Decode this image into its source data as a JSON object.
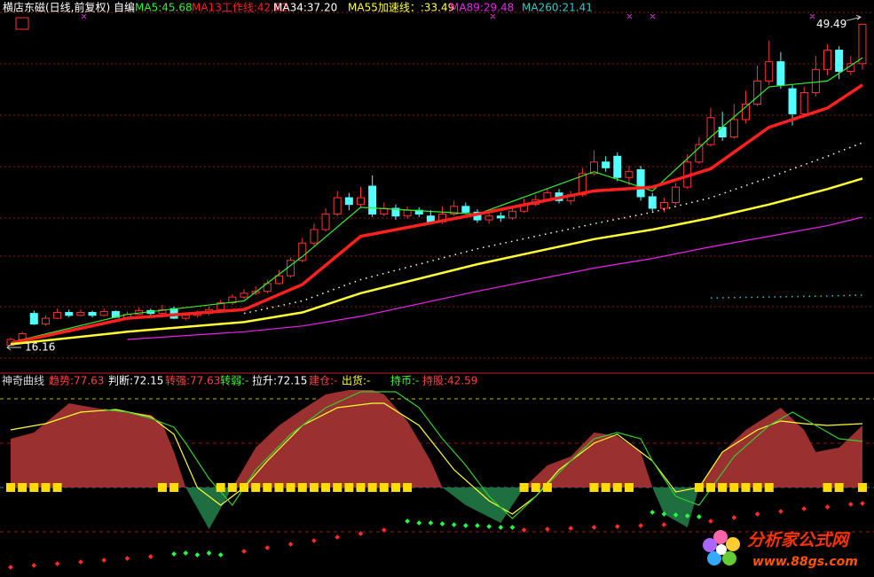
{
  "chart_data": [
    {
      "type": "candlestick",
      "title": "横店东磁(日线,前复权) 自编",
      "title_color": "#ffffff",
      "ylim": [
        13.4,
        52.0
      ],
      "up_color": "#ff3232",
      "down_color": "#54ffff",
      "open": [
        16.2,
        16.8,
        19.5,
        18.4,
        19.0,
        19.6,
        19.3,
        19.6,
        19.3,
        19.7,
        19.1,
        19.4,
        19.8,
        19.5,
        20.0,
        19.0,
        19.3,
        19.5,
        19.9,
        20.6,
        21.2,
        21.6,
        21.8,
        22.6,
        23.4,
        25.0,
        26.8,
        28.2,
        29.8,
        31.5,
        30.8,
        32.7,
        29.8,
        30.4,
        29.6,
        30.2,
        29.6,
        29.0,
        29.8,
        30.6,
        30.0,
        29.2,
        29.6,
        29.4,
        30.1,
        30.8,
        31.3,
        32.0,
        31.2,
        31.8,
        34.0,
        35.2,
        35.8,
        33.6,
        34.4,
        31.6,
        30.4,
        31.0,
        32.6,
        35.2,
        37.0,
        38.8,
        37.8,
        39.6,
        41.2,
        43.6,
        45.6,
        42.8,
        40.2,
        42.4,
        44.8,
        46.8,
        44.6,
        45.4
      ],
      "close": [
        16.8,
        17.4,
        18.4,
        19.0,
        19.6,
        19.3,
        19.6,
        19.3,
        19.7,
        19.1,
        19.4,
        19.8,
        19.5,
        19.9,
        19.0,
        19.3,
        19.5,
        19.9,
        20.6,
        21.2,
        21.6,
        21.8,
        22.6,
        23.4,
        25.0,
        26.8,
        28.2,
        29.8,
        31.5,
        30.8,
        31.5,
        29.8,
        30.4,
        29.6,
        30.2,
        29.8,
        29.0,
        29.8,
        30.6,
        30.0,
        29.2,
        29.6,
        29.4,
        30.1,
        30.8,
        31.3,
        32.0,
        31.2,
        31.8,
        34.0,
        35.2,
        34.6,
        33.6,
        34.2,
        31.6,
        30.4,
        31.0,
        32.6,
        35.2,
        37.0,
        39.8,
        37.8,
        39.6,
        41.2,
        43.6,
        45.6,
        43.2,
        40.2,
        42.4,
        44.8,
        46.8,
        44.6,
        45.4,
        49.49
      ],
      "high": [
        17.0,
        17.6,
        19.8,
        19.3,
        20.0,
        19.9,
        19.9,
        19.8,
        20.0,
        19.8,
        19.7,
        20.1,
        20.0,
        20.4,
        20.2,
        19.6,
        19.8,
        20.2,
        20.9,
        21.5,
        22.0,
        22.3,
        23.0,
        24.0,
        25.3,
        27.3,
        28.8,
        30.4,
        32.2,
        32.0,
        32.6,
        33.8,
        31.0,
        30.8,
        30.6,
        30.5,
        30.2,
        30.6,
        31.2,
        31.0,
        30.3,
        30.0,
        30.0,
        30.4,
        31.4,
        31.8,
        32.5,
        32.4,
        32.2,
        34.6,
        36.4,
        35.8,
        36.2,
        34.8,
        34.8,
        32.0,
        31.5,
        33.0,
        36.0,
        37.8,
        40.8,
        40.4,
        41.2,
        42.6,
        45.2,
        47.8,
        46.6,
        43.2,
        43.0,
        46.2,
        47.4,
        47.2,
        46.2,
        49.49
      ],
      "low": [
        16.16,
        16.7,
        18.3,
        18.2,
        18.9,
        19.1,
        19.2,
        19.1,
        19.2,
        19.0,
        19.0,
        19.3,
        19.3,
        19.4,
        18.9,
        18.8,
        19.1,
        19.3,
        19.8,
        20.4,
        21.0,
        21.4,
        21.6,
        22.5,
        23.2,
        24.8,
        26.5,
        28.0,
        29.6,
        30.2,
        30.5,
        29.5,
        29.6,
        29.2,
        29.3,
        29.5,
        28.7,
        28.8,
        29.6,
        29.8,
        28.9,
        28.8,
        29.0,
        29.2,
        29.9,
        30.6,
        31.1,
        30.9,
        30.8,
        31.6,
        33.8,
        34.2,
        33.2,
        32.8,
        31.2,
        30.1,
        30.0,
        30.8,
        32.4,
        35.0,
        36.8,
        37.4,
        37.6,
        39.2,
        41.0,
        43.2,
        42.8,
        39.0,
        39.8,
        42.0,
        44.2,
        43.8,
        44.2,
        44.8
      ],
      "series": [
        {
          "name": "MA5:45.68",
          "color": "#33ee33",
          "x": [
            0,
            10,
            20,
            25,
            30,
            40,
            50,
            55,
            60,
            65,
            70,
            73
          ],
          "values": [
            16.5,
            19.4,
            20.8,
            25.4,
            30.5,
            29.8,
            34.2,
            32.2,
            37.8,
            43.0,
            43.6,
            46.0
          ]
        },
        {
          "name": "MA13工作线:42.62",
          "color": "#ff2020",
          "width": 3.5,
          "x": [
            0,
            10,
            20,
            25,
            30,
            40,
            50,
            55,
            60,
            65,
            70,
            73
          ],
          "values": [
            16.4,
            19.0,
            19.9,
            22.5,
            27.5,
            29.8,
            32.2,
            32.6,
            34.5,
            38.8,
            40.8,
            43.2
          ]
        },
        {
          "name": "MA34:37.20",
          "color": "#ffffff",
          "style": "dotted",
          "x": [
            0,
            10,
            20,
            25,
            30,
            40,
            50,
            55,
            60,
            65,
            70,
            73
          ],
          "values": [
            null,
            null,
            19.5,
            20.8,
            23.0,
            26.2,
            28.8,
            30.0,
            31.5,
            33.6,
            35.8,
            37.2
          ]
        },
        {
          "name": "MA55加速线：:33.49",
          "color": "#ffff33",
          "width": 2.5,
          "x": [
            0,
            10,
            20,
            25,
            30,
            40,
            50,
            55,
            60,
            65,
            70,
            73
          ],
          "values": [
            16.3,
            17.6,
            18.6,
            19.6,
            21.6,
            24.6,
            27.2,
            28.2,
            29.4,
            30.8,
            32.4,
            33.49
          ]
        },
        {
          "name": "MA89:29.48",
          "color": "#ee22ee",
          "x": [
            0,
            10,
            20,
            25,
            30,
            40,
            50,
            55,
            60,
            65,
            70,
            73
          ],
          "values": [
            null,
            16.8,
            17.6,
            18.2,
            19.2,
            21.8,
            24.2,
            25.2,
            26.4,
            27.5,
            28.6,
            29.48
          ]
        },
        {
          "name": "MA260:21.41",
          "color": "#33c8c8",
          "style": "dotted",
          "x": [
            0,
            10,
            20,
            25,
            30,
            40,
            50,
            55,
            60,
            65,
            70,
            73
          ],
          "values": [
            null,
            null,
            null,
            null,
            null,
            null,
            null,
            null,
            21.1,
            21.2,
            21.3,
            21.41
          ]
        }
      ],
      "annotations": [
        {
          "x": 73,
          "value": 49.49
        },
        {
          "x": 0,
          "value": 16.16
        }
      ]
    },
    {
      "type": "indicator",
      "title": "神奇曲线",
      "title_color": "#dddddd",
      "ylim": [
        -95,
        125
      ],
      "legend": [
        {
          "text": "趋势:77.63",
          "color": "#ff4040"
        },
        {
          "text": "判断:72.15",
          "color": "#ffffff"
        },
        {
          "text": "转强:77.63",
          "color": "#ff4040"
        },
        {
          "text": "转弱:-",
          "color": "#33ff33"
        },
        {
          "text": "拉升:72.15",
          "color": "#ffffff"
        },
        {
          "text": "建仓:-",
          "color": "#ff4040"
        },
        {
          "text": "出货:-",
          "color": "#ffff33"
        },
        {
          "text": "持币:-",
          "color": "#33ff33"
        },
        {
          "text": "持股:42.59",
          "color": "#ff4040"
        }
      ],
      "levels": [
        100,
        50,
        0,
        -50
      ],
      "level_colors": [
        "#c8b400",
        "#8b1a1a",
        "#3a7fa0",
        "#8b1a1a"
      ],
      "area": {
        "up_color": "#9a3030",
        "down_color": "#1f6e40",
        "x": [
          0,
          2,
          5,
          8,
          10,
          12,
          13,
          14,
          15,
          17,
          19,
          21,
          23,
          25,
          27,
          29,
          31,
          32,
          34,
          36,
          37,
          39,
          42,
          44,
          46,
          48,
          50,
          52,
          54,
          55,
          56,
          58,
          59,
          61,
          63,
          66,
          68,
          69,
          71,
          73
        ],
        "values": [
          55,
          62,
          95,
          88,
          85,
          82,
          72,
          40,
          0,
          -47,
          0,
          45,
          70,
          88,
          105,
          110,
          110,
          105,
          75,
          30,
          0,
          -20,
          -40,
          0,
          25,
          35,
          62,
          58,
          40,
          0,
          -30,
          -45,
          0,
          40,
          65,
          90,
          65,
          40,
          45,
          70
        ]
      },
      "series": [
        {
          "color": "#ffff33",
          "x": [
            0,
            3,
            6,
            9,
            12,
            14,
            16,
            18,
            20,
            22,
            25,
            28,
            31,
            32,
            35,
            38,
            41,
            43,
            45,
            47,
            50,
            52,
            55,
            57,
            59,
            61,
            64,
            66,
            68,
            70,
            73
          ],
          "values": [
            65,
            72,
            85,
            88,
            80,
            60,
            0,
            -20,
            0,
            30,
            70,
            90,
            95,
            95,
            70,
            20,
            -15,
            -30,
            -10,
            20,
            50,
            60,
            30,
            -5,
            0,
            40,
            65,
            75,
            72,
            70,
            72
          ]
        },
        {
          "color": "#33cc33",
          "x": [
            8,
            10,
            12,
            14,
            15,
            17,
            19,
            21,
            24,
            27,
            30,
            33,
            35,
            37,
            39,
            41,
            43,
            45,
            48,
            50,
            52,
            54,
            55,
            57,
            59,
            62,
            65,
            67,
            69,
            71,
            73
          ],
          "values": [
            88,
            85,
            78,
            68,
            50,
            10,
            -20,
            20,
            60,
            90,
            108,
            108,
            90,
            55,
            25,
            -10,
            -35,
            -10,
            30,
            55,
            62,
            55,
            30,
            -10,
            -20,
            35,
            70,
            85,
            70,
            55,
            52
          ]
        }
      ],
      "signals": {
        "color": "#ffdd00",
        "x": [
          0,
          1,
          2,
          3,
          4,
          13,
          14,
          18,
          19,
          20,
          21,
          22,
          23,
          24,
          25,
          26,
          27,
          28,
          29,
          30,
          31,
          32,
          33,
          34,
          44,
          45,
          46,
          50,
          51,
          52,
          53,
          59,
          60,
          61,
          62,
          63,
          64,
          65,
          70,
          71,
          73
        ]
      },
      "dots": [
        {
          "color": "#ff2a2a",
          "x": [
            0,
            2,
            4,
            6,
            8,
            10,
            12,
            20,
            22,
            24,
            26,
            28,
            30,
            32,
            44,
            46,
            48,
            50,
            52,
            54,
            56,
            60,
            62,
            64,
            66,
            68,
            70,
            72,
            73
          ],
          "values": [
            -90,
            -88,
            -86,
            -84,
            -82,
            -80,
            -78,
            -72,
            -68,
            -64,
            -60,
            -56,
            -52,
            -48,
            -48,
            -47,
            -46,
            -45,
            -44,
            -43,
            -42,
            -38,
            -34,
            -30,
            -27,
            -24,
            -22,
            -19,
            -18
          ]
        },
        {
          "color": "#22ff44",
          "x": [
            14,
            15,
            16,
            17,
            18,
            34,
            35,
            36,
            37,
            38,
            39,
            40,
            41,
            42,
            43,
            55,
            56,
            57,
            58,
            59
          ],
          "values": [
            -75,
            -74,
            -76,
            -74,
            -76,
            -38,
            -40,
            -40,
            -41,
            -42,
            -43,
            -43,
            -44,
            -45,
            -45,
            -28,
            -30,
            -31,
            -32,
            -33
          ]
        }
      ]
    }
  ],
  "watermark": {
    "title": "分析家公式网",
    "url": "www.88gs.com"
  }
}
